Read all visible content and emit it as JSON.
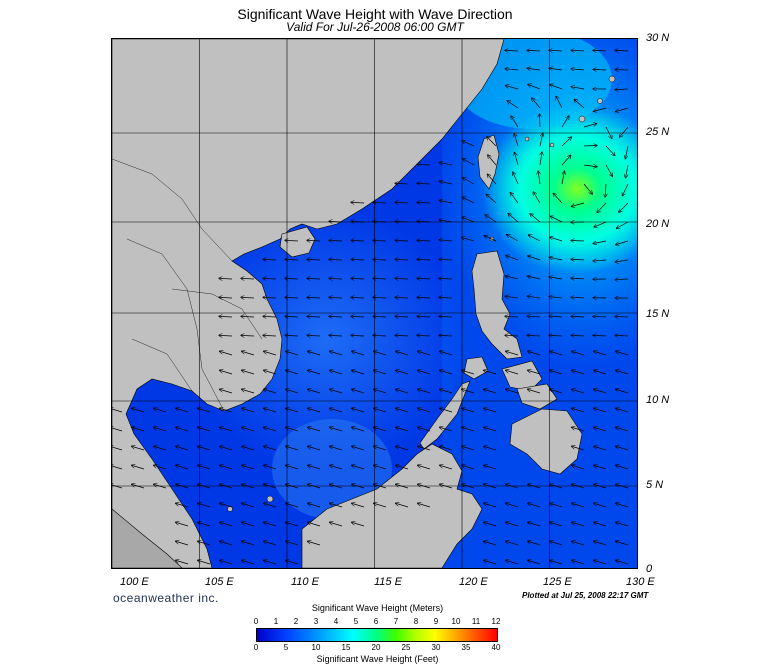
{
  "header": {
    "title": "Significant Wave Height with Wave Direction",
    "valid_time": "Valid For Jul-26-2008 06:00 GMT"
  },
  "map": {
    "latitude_labels": [
      "30 N",
      "25 N",
      "20 N",
      "15 N",
      "10 N",
      "5 N",
      "0"
    ],
    "longitude_labels": [
      "100 E",
      "105 E",
      "110 E",
      "115 E",
      "120 E",
      "125 E",
      "130 E"
    ],
    "colors": {
      "land": "#c0c0c0",
      "sea_low": "#0030e8",
      "sea_mid": "#0078f0",
      "storm": "#00ffb0",
      "storm_core": "#60ff40"
    }
  },
  "footer": {
    "brand": "oceanweather inc.",
    "plotted": "Plotted at Jul 25, 2008 22:17 GMT"
  },
  "legend": {
    "title_meters": "Significant Wave Height (Meters)",
    "ticks_meters": [
      "0",
      "1",
      "2",
      "3",
      "4",
      "5",
      "6",
      "7",
      "8",
      "9",
      "10",
      "11",
      "12"
    ],
    "ticks_feet": [
      "0",
      "5",
      "10",
      "15",
      "20",
      "25",
      "30",
      "35",
      "40"
    ],
    "title_feet": "Significant Wave Height (Feet)"
  }
}
